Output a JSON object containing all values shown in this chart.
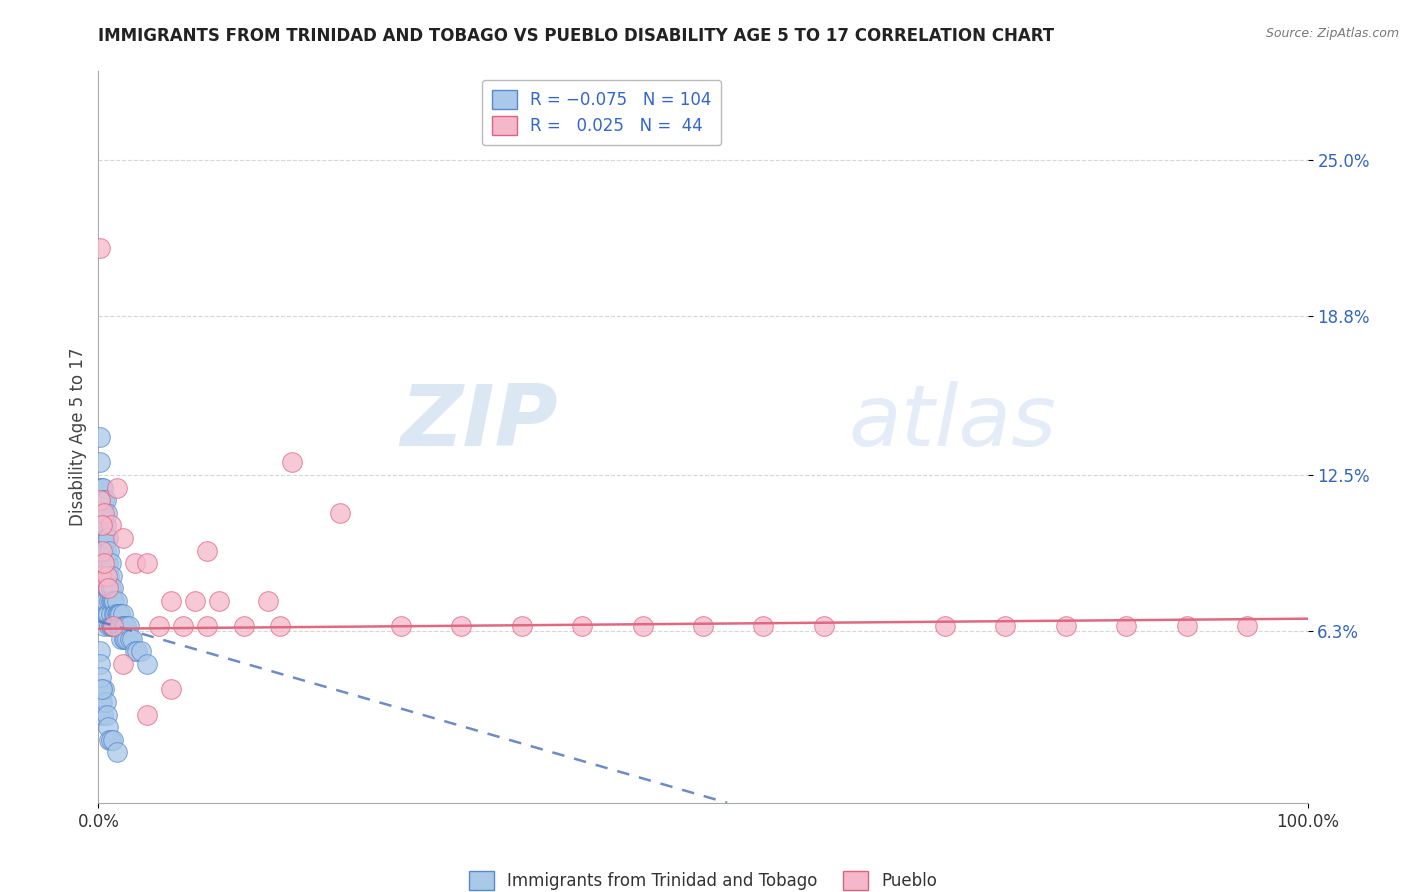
{
  "title": "IMMIGRANTS FROM TRINIDAD AND TOBAGO VS PUEBLO DISABILITY AGE 5 TO 17 CORRELATION CHART",
  "source": "Source: ZipAtlas.com",
  "ylabel": "Disability Age 5 to 17",
  "series1_label": "Immigrants from Trinidad and Tobago",
  "series2_label": "Pueblo",
  "series1_R": -0.075,
  "series1_N": 104,
  "series2_R": 0.025,
  "series2_N": 44,
  "series1_color": "#aac8e8",
  "series2_color": "#f5b8ca",
  "series1_edge": "#5588cc",
  "series2_edge": "#e06080",
  "trendline1_color": "#5577bb",
  "trendline2_color": "#e06880",
  "xlim": [
    0.0,
    1.0
  ],
  "ylim": [
    -0.005,
    0.285
  ],
  "yticks": [
    0.063,
    0.125,
    0.188,
    0.25
  ],
  "ytick_labels": [
    "6.3%",
    "12.5%",
    "18.8%",
    "25.0%"
  ],
  "xticks": [
    0.0,
    1.0
  ],
  "xtick_labels": [
    "0.0%",
    "100.0%"
  ],
  "watermark_zip": "ZIP",
  "watermark_atlas": "atlas",
  "background_color": "#ffffff",
  "grid_color": "#cccccc",
  "series1_x": [
    0.001,
    0.001,
    0.001,
    0.001,
    0.002,
    0.002,
    0.002,
    0.002,
    0.003,
    0.003,
    0.003,
    0.003,
    0.003,
    0.004,
    0.004,
    0.004,
    0.004,
    0.004,
    0.005,
    0.005,
    0.005,
    0.005,
    0.005,
    0.005,
    0.006,
    0.006,
    0.006,
    0.006,
    0.006,
    0.007,
    0.007,
    0.007,
    0.007,
    0.007,
    0.008,
    0.008,
    0.008,
    0.008,
    0.009,
    0.009,
    0.009,
    0.009,
    0.01,
    0.01,
    0.01,
    0.01,
    0.01,
    0.011,
    0.011,
    0.011,
    0.012,
    0.012,
    0.012,
    0.013,
    0.013,
    0.013,
    0.014,
    0.014,
    0.015,
    0.015,
    0.015,
    0.016,
    0.016,
    0.017,
    0.017,
    0.018,
    0.018,
    0.019,
    0.019,
    0.02,
    0.02,
    0.021,
    0.021,
    0.022,
    0.022,
    0.023,
    0.024,
    0.025,
    0.026,
    0.028,
    0.03,
    0.032,
    0.035,
    0.04,
    0.001,
    0.001,
    0.001,
    0.002,
    0.002,
    0.003,
    0.003,
    0.004,
    0.005,
    0.006,
    0.007,
    0.008,
    0.009,
    0.01,
    0.012,
    0.015,
    0.001,
    0.001,
    0.002,
    0.003
  ],
  "series1_y": [
    0.14,
    0.13,
    0.12,
    0.11,
    0.115,
    0.105,
    0.095,
    0.085,
    0.12,
    0.11,
    0.1,
    0.09,
    0.08,
    0.12,
    0.11,
    0.1,
    0.09,
    0.08,
    0.115,
    0.105,
    0.095,
    0.085,
    0.075,
    0.065,
    0.115,
    0.105,
    0.095,
    0.085,
    0.075,
    0.11,
    0.1,
    0.09,
    0.08,
    0.07,
    0.1,
    0.09,
    0.08,
    0.07,
    0.095,
    0.085,
    0.075,
    0.065,
    0.09,
    0.08,
    0.075,
    0.07,
    0.065,
    0.085,
    0.075,
    0.065,
    0.08,
    0.075,
    0.065,
    0.075,
    0.07,
    0.065,
    0.07,
    0.065,
    0.075,
    0.07,
    0.065,
    0.07,
    0.065,
    0.07,
    0.065,
    0.07,
    0.065,
    0.065,
    0.06,
    0.07,
    0.065,
    0.065,
    0.06,
    0.065,
    0.06,
    0.065,
    0.06,
    0.065,
    0.06,
    0.06,
    0.055,
    0.055,
    0.055,
    0.05,
    0.04,
    0.035,
    0.03,
    0.04,
    0.035,
    0.04,
    0.035,
    0.03,
    0.04,
    0.035,
    0.03,
    0.025,
    0.02,
    0.02,
    0.02,
    0.015,
    0.055,
    0.05,
    0.045,
    0.04
  ],
  "series2_x": [
    0.001,
    0.002,
    0.003,
    0.005,
    0.007,
    0.01,
    0.015,
    0.02,
    0.03,
    0.04,
    0.05,
    0.06,
    0.07,
    0.08,
    0.09,
    0.1,
    0.12,
    0.14,
    0.16,
    0.2,
    0.25,
    0.3,
    0.35,
    0.4,
    0.45,
    0.5,
    0.55,
    0.6,
    0.7,
    0.75,
    0.8,
    0.85,
    0.9,
    0.95,
    0.001,
    0.003,
    0.005,
    0.008,
    0.012,
    0.02,
    0.04,
    0.06,
    0.09,
    0.15
  ],
  "series2_y": [
    0.115,
    0.085,
    0.095,
    0.11,
    0.085,
    0.105,
    0.12,
    0.1,
    0.09,
    0.09,
    0.065,
    0.075,
    0.065,
    0.075,
    0.065,
    0.075,
    0.065,
    0.075,
    0.13,
    0.11,
    0.065,
    0.065,
    0.065,
    0.065,
    0.065,
    0.065,
    0.065,
    0.065,
    0.065,
    0.065,
    0.065,
    0.065,
    0.065,
    0.065,
    0.215,
    0.105,
    0.09,
    0.08,
    0.065,
    0.05,
    0.03,
    0.04,
    0.095,
    0.065
  ]
}
